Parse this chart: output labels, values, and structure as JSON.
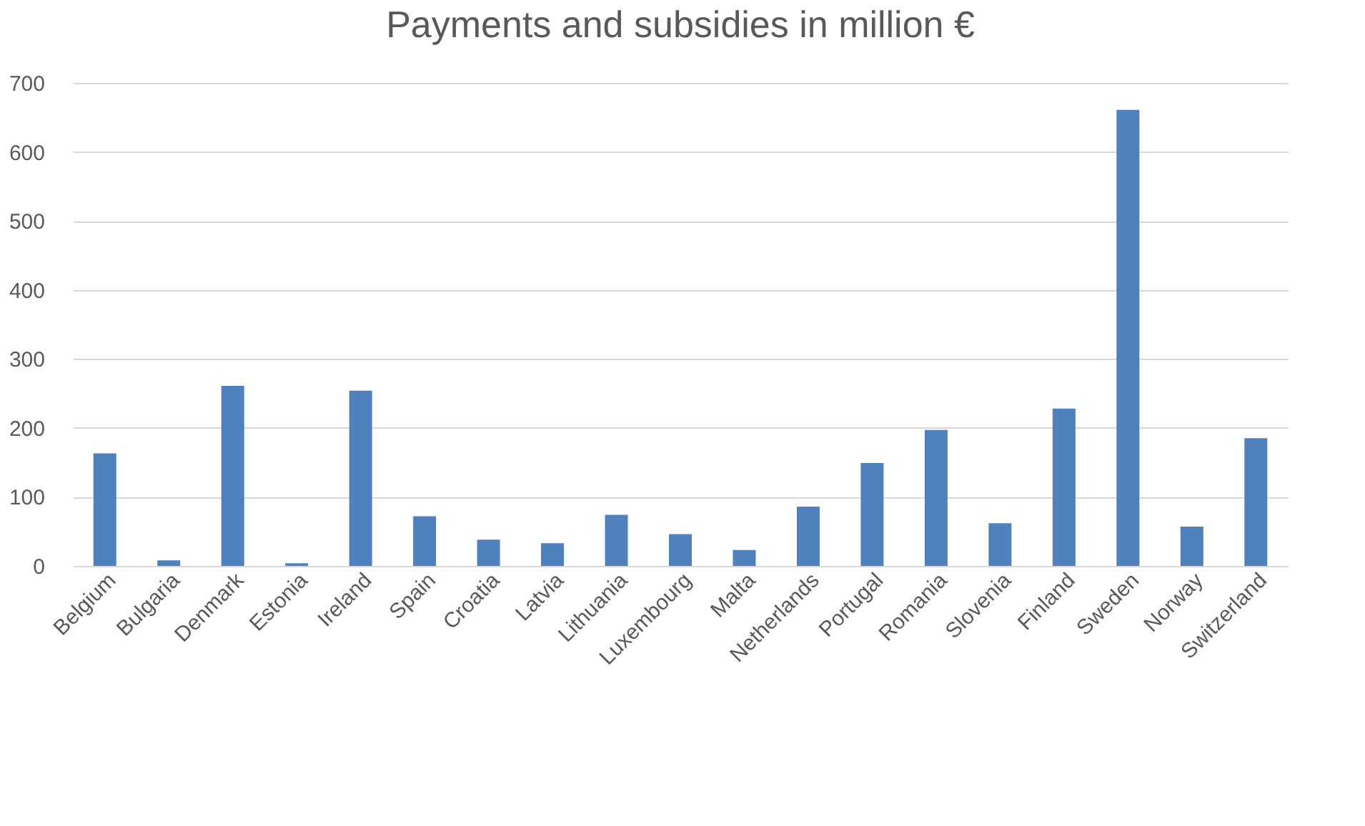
{
  "chart_data": {
    "type": "bar",
    "title": "Payments and subsidies  in million €",
    "categories": [
      "Belgium",
      "Bulgaria",
      "Denmark",
      "Estonia",
      "Ireland",
      "Spain",
      "Croatia",
      "Latvia",
      "Lithuania",
      "Luxembourg",
      "Malta",
      "Netherlands",
      "Portugal",
      "Romania",
      "Slovenia",
      "Finland",
      "Sweden",
      "Norway",
      "Switzerland"
    ],
    "values": [
      163,
      8,
      261,
      4,
      254,
      72,
      38,
      33,
      74,
      46,
      23,
      86,
      149,
      197,
      62,
      228,
      661,
      57,
      185
    ],
    "color": "#4f81bd",
    "ylim": [
      0,
      700
    ],
    "yticks": [
      0,
      100,
      200,
      300,
      400,
      500,
      600,
      700
    ],
    "grid": "y"
  }
}
